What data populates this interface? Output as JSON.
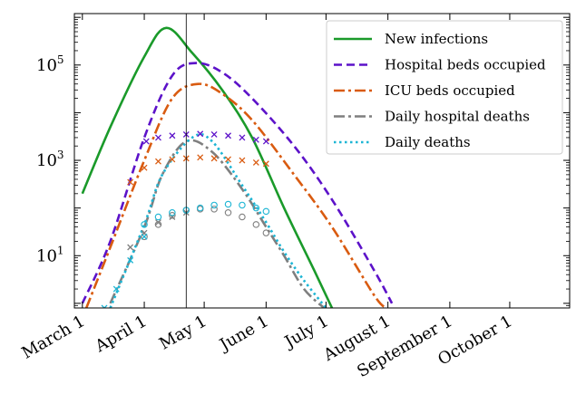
{
  "chart_data": {
    "type": "line",
    "y_scale": "log",
    "ylim": [
      0.8,
      1200000
    ],
    "x_range": [
      "2020-02-26",
      "2020-10-31"
    ],
    "x_ticks": [
      {
        "date": "2020-03-01",
        "label": "March 1"
      },
      {
        "date": "2020-04-01",
        "label": "April 1"
      },
      {
        "date": "2020-05-01",
        "label": "May 1"
      },
      {
        "date": "2020-06-01",
        "label": "June 1"
      },
      {
        "date": "2020-07-01",
        "label": "July 1"
      },
      {
        "date": "2020-08-01",
        "label": "August 1"
      },
      {
        "date": "2020-09-01",
        "label": "September 1"
      },
      {
        "date": "2020-10-01",
        "label": "October 1"
      }
    ],
    "y_ticks": [
      {
        "value": 10,
        "base": "10",
        "exp": "1"
      },
      {
        "value": 1000,
        "base": "10",
        "exp": "3"
      },
      {
        "value": 100000,
        "base": "10",
        "exp": "5"
      }
    ],
    "vertical_line_date": "2020-04-22",
    "legend_position": "upper-right",
    "series": [
      {
        "name": "New infections",
        "color": "#1a9a2a",
        "style": "solid",
        "x": [
          "2020-03-01",
          "2020-03-15",
          "2020-04-01",
          "2020-04-12",
          "2020-04-25",
          "2020-05-10",
          "2020-05-25",
          "2020-06-10",
          "2020-06-25",
          "2020-07-04"
        ],
        "y": [
          200,
          5000,
          150000,
          600000,
          180000,
          30000,
          3000,
          100,
          5,
          0.8
        ]
      },
      {
        "name": "Hospital beds occupied",
        "color": "#5c12c9",
        "style": "dashed",
        "x": [
          "2020-03-01",
          "2020-03-15",
          "2020-04-01",
          "2020-04-15",
          "2020-04-27",
          "2020-05-10",
          "2020-05-25",
          "2020-06-15",
          "2020-07-04",
          "2020-07-25",
          "2020-08-03"
        ],
        "y": [
          1,
          20,
          3000,
          60000,
          110000,
          70000,
          20000,
          2000,
          150,
          5,
          1
        ]
      },
      {
        "name": "ICU beds occupied",
        "color": "#d95b10",
        "style": "dashdot",
        "x": [
          "2020-03-03",
          "2020-03-15",
          "2020-04-01",
          "2020-04-15",
          "2020-04-28",
          "2020-05-10",
          "2020-05-25",
          "2020-06-15",
          "2020-07-04",
          "2020-07-25",
          "2020-07-31"
        ],
        "y": [
          0.8,
          15,
          1000,
          20000,
          40000,
          25000,
          7000,
          500,
          40,
          1.5,
          0.8
        ]
      },
      {
        "name": "Daily hospital deaths",
        "color": "#7f7f7f",
        "style": "dashdot",
        "x": [
          "2020-03-15",
          "2020-04-01",
          "2020-04-10",
          "2020-04-22",
          "2020-05-05",
          "2020-05-20",
          "2020-06-01",
          "2020-06-10",
          "2020-06-20",
          "2020-06-30"
        ],
        "y": [
          1,
          40,
          500,
          2500,
          1500,
          250,
          40,
          10,
          2,
          0.8
        ]
      },
      {
        "name": "Daily deaths",
        "color": "#1cb5d4",
        "style": "dotted",
        "x": [
          "2020-03-15",
          "2020-04-01",
          "2020-04-10",
          "2020-04-25",
          "2020-05-05",
          "2020-05-20",
          "2020-06-01",
          "2020-06-10",
          "2020-06-20",
          "2020-07-01"
        ],
        "y": [
          0.8,
          45,
          500,
          3000,
          2500,
          300,
          50,
          12,
          3,
          0.8
        ]
      }
    ],
    "marker_series": [
      {
        "color": "#5c12c9",
        "marker": "x",
        "x": [
          "2020-04-02",
          "2020-04-08",
          "2020-04-15",
          "2020-04-22",
          "2020-04-29",
          "2020-05-06",
          "2020-05-13",
          "2020-05-20",
          "2020-05-27",
          "2020-06-01"
        ],
        "y": [
          2500,
          3000,
          3300,
          3500,
          3600,
          3500,
          3300,
          3000,
          2700,
          2500
        ]
      },
      {
        "color": "#d95b10",
        "marker": "x",
        "x": [
          "2020-03-25",
          "2020-04-01",
          "2020-04-08",
          "2020-04-15",
          "2020-04-22",
          "2020-04-29",
          "2020-05-06",
          "2020-05-13",
          "2020-05-20",
          "2020-05-27",
          "2020-06-01"
        ],
        "y": [
          350,
          700,
          950,
          1050,
          1100,
          1150,
          1100,
          1050,
          1000,
          900,
          850
        ]
      },
      {
        "color": "#7f7f7f",
        "marker": "o",
        "x": [
          "2020-04-01",
          "2020-04-08",
          "2020-04-15",
          "2020-04-22",
          "2020-04-29",
          "2020-05-06",
          "2020-05-13",
          "2020-05-20",
          "2020-05-27",
          "2020-06-01"
        ],
        "y": [
          25,
          45,
          70,
          90,
          95,
          95,
          80,
          65,
          45,
          30
        ]
      },
      {
        "color": "#7f7f7f",
        "marker": "x",
        "x": [
          "2020-03-25",
          "2020-04-01",
          "2020-04-08",
          "2020-04-15",
          "2020-04-22"
        ],
        "y": [
          15,
          30,
          50,
          65,
          80
        ]
      },
      {
        "color": "#1cb5d4",
        "marker": "x",
        "x": [
          "2020-03-12",
          "2020-03-18",
          "2020-03-25",
          "2020-04-01"
        ],
        "y": [
          0.8,
          2,
          8,
          25
        ]
      },
      {
        "color": "#1cb5d4",
        "marker": "o",
        "x": [
          "2020-04-01",
          "2020-04-08",
          "2020-04-15",
          "2020-04-22",
          "2020-04-29",
          "2020-05-06",
          "2020-05-13",
          "2020-05-20",
          "2020-05-27",
          "2020-06-01"
        ],
        "y": [
          45,
          65,
          80,
          90,
          100,
          115,
          120,
          115,
          100,
          85
        ]
      }
    ]
  }
}
